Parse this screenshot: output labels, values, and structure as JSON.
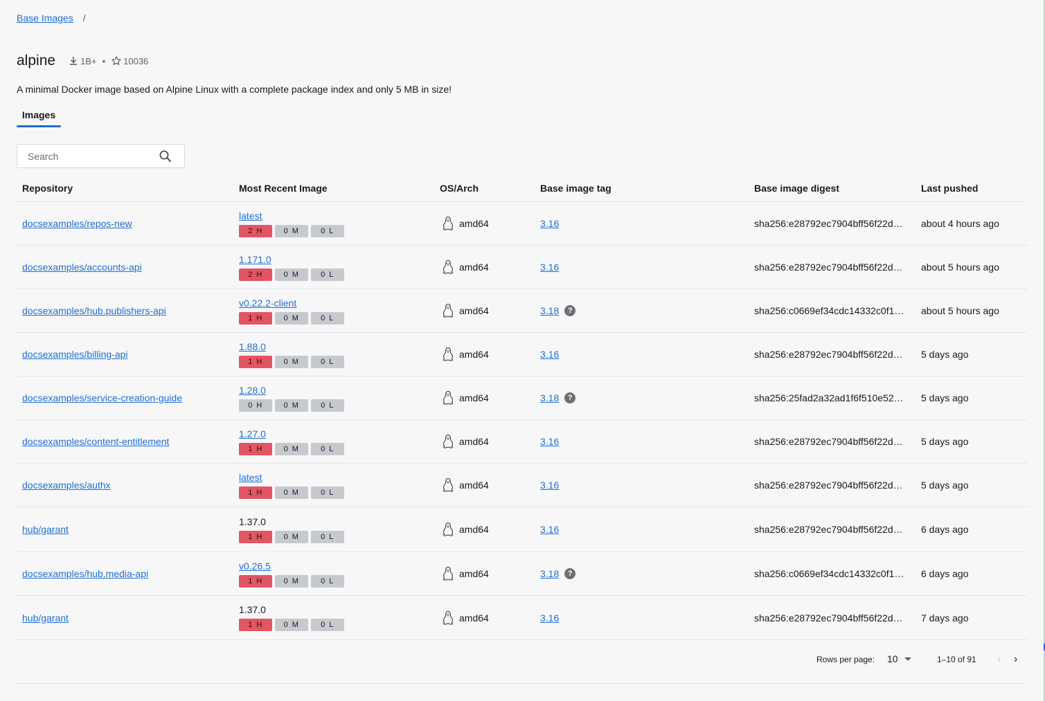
{
  "breadcrumb": {
    "root": "Base Images",
    "separator": "/"
  },
  "header": {
    "title": "alpine",
    "pulls": "1B+",
    "dot": "•",
    "stars": "10036",
    "description": "A minimal Docker image based on Alpine Linux with a complete package index and only 5 MB in size!"
  },
  "tabs": {
    "images": "Images"
  },
  "search": {
    "placeholder": "Search"
  },
  "table": {
    "columns": {
      "repository": "Repository",
      "most_recent": "Most Recent Image",
      "os_arch": "OS/Arch",
      "base_tag": "Base image tag",
      "base_digest": "Base image digest",
      "last_pushed": "Last pushed"
    },
    "rows": [
      {
        "repo": "docsexamples/repos-new",
        "tag": "latest",
        "tag_link": true,
        "h": "2 H",
        "m": "0 M",
        "l": "0 L",
        "h_red": true,
        "arch": "amd64",
        "base": "3.16",
        "help": false,
        "digest": "sha256:e28792ec7904bff56f22d…",
        "pushed": "about 4 hours ago"
      },
      {
        "repo": "docsexamples/accounts-api",
        "tag": "1.171.0",
        "tag_link": true,
        "h": "2 H",
        "m": "0 M",
        "l": "0 L",
        "h_red": true,
        "arch": "amd64",
        "base": "3.16",
        "help": false,
        "digest": "sha256:e28792ec7904bff56f22d…",
        "pushed": "about 5 hours ago"
      },
      {
        "repo": "docsexamples/hub.publishers-api",
        "tag": "v0.22.2-client",
        "tag_link": true,
        "h": "1 H",
        "m": "0 M",
        "l": "0 L",
        "h_red": true,
        "arch": "amd64",
        "base": "3.18",
        "help": true,
        "digest": "sha256:c0669ef34cdc14332c0f1…",
        "pushed": "about 5 hours ago"
      },
      {
        "repo": "docsexamples/billing-api",
        "tag": "1.88.0",
        "tag_link": true,
        "h": "1 H",
        "m": "0 M",
        "l": "0 L",
        "h_red": true,
        "arch": "amd64",
        "base": "3.16",
        "help": false,
        "digest": "sha256:e28792ec7904bff56f22d…",
        "pushed": "5 days ago"
      },
      {
        "repo": "docsexamples/service-creation-guide",
        "tag": "1.28.0",
        "tag_link": true,
        "h": "0 H",
        "m": "0 M",
        "l": "0 L",
        "h_red": false,
        "arch": "amd64",
        "base": "3.18",
        "help": true,
        "digest": "sha256:25fad2a32ad1f6f510e52…",
        "pushed": "5 days ago"
      },
      {
        "repo": "docsexamples/content-entitlement",
        "tag": "1.27.0",
        "tag_link": true,
        "h": "1 H",
        "m": "0 M",
        "l": "0 L",
        "h_red": true,
        "arch": "amd64",
        "base": "3.16",
        "help": false,
        "digest": "sha256:e28792ec7904bff56f22d…",
        "pushed": "5 days ago"
      },
      {
        "repo": "docsexamples/authx",
        "tag": "latest",
        "tag_link": true,
        "h": "1 H",
        "m": "0 M",
        "l": "0 L",
        "h_red": true,
        "arch": "amd64",
        "base": "3.16",
        "help": false,
        "digest": "sha256:e28792ec7904bff56f22d…",
        "pushed": "5 days ago"
      },
      {
        "repo": "hub/garant",
        "tag": "1.37.0",
        "tag_link": false,
        "h": "1 H",
        "m": "0 M",
        "l": "0 L",
        "h_red": true,
        "arch": "amd64",
        "base": "3.16",
        "help": false,
        "digest": "sha256:e28792ec7904bff56f22d…",
        "pushed": "6 days ago"
      },
      {
        "repo": "docsexamples/hub.media-api",
        "tag": "v0.26.5",
        "tag_link": true,
        "h": "1 H",
        "m": "0 M",
        "l": "0 L",
        "h_red": true,
        "arch": "amd64",
        "base": "3.18",
        "help": true,
        "digest": "sha256:c0669ef34cdc14332c0f1…",
        "pushed": "6 days ago"
      },
      {
        "repo": "hub/garant",
        "tag": "1.37.0",
        "tag_link": false,
        "h": "1 H",
        "m": "0 M",
        "l": "0 L",
        "h_red": true,
        "arch": "amd64",
        "base": "3.16",
        "help": false,
        "digest": "sha256:e28792ec7904bff56f22d…",
        "pushed": "7 days ago"
      }
    ]
  },
  "pagination": {
    "rows_per_page_label": "Rows per page:",
    "rows_per_page": "10",
    "range": "1–10 of 91"
  },
  "colors": {
    "link": "#1f6fd1",
    "high": "#e25563",
    "neutral_chip": "#c6c9ce",
    "tab_underline": "#1f6fd1"
  },
  "icons": {
    "pulls": "download-icon",
    "stars": "star-icon",
    "search": "search-icon",
    "os": "linux-tux-icon",
    "help": "help-circle-icon"
  }
}
